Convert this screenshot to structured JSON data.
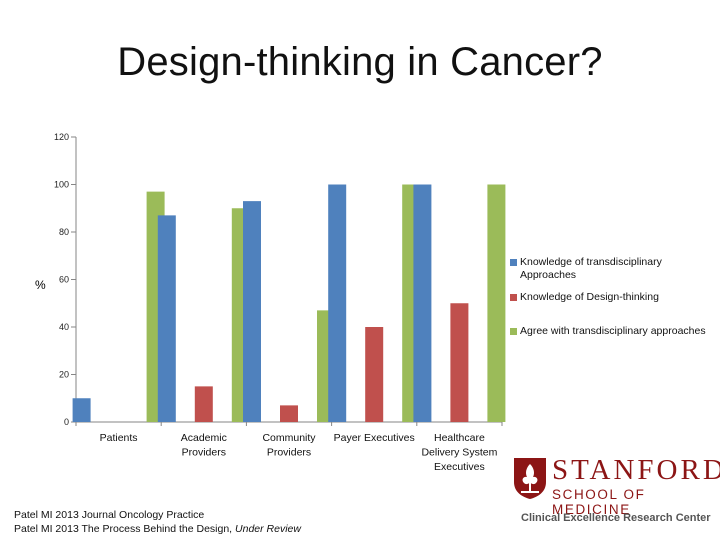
{
  "slide": {
    "title": "Design-thinking in Cancer?",
    "citations": [
      {
        "text": "Patel MI 2013 Journal Oncology Practice",
        "italic": ""
      },
      {
        "text": "Patel MI 2013 The Process Behind the Design, ",
        "italic": "Under Review"
      }
    ]
  },
  "logo": {
    "wordmark": "STANFORD",
    "school": "SCHOOL OF MEDICINE",
    "center": "Clinical Excellence Research Center",
    "color": "#8c1515"
  },
  "chart_data": {
    "type": "bar",
    "title": "",
    "xlabel": "",
    "ylabel": "%",
    "ylim": [
      0,
      120
    ],
    "yticks": [
      0,
      20,
      40,
      60,
      80,
      100,
      120
    ],
    "grid": false,
    "legend_position": "right",
    "categories": [
      [
        "Patients"
      ],
      [
        "Academic",
        "Providers"
      ],
      [
        "Community",
        "Providers"
      ],
      [
        "Payer Executives"
      ],
      [
        "Healthcare",
        "Delivery System",
        "Executives"
      ]
    ],
    "series": [
      {
        "name": "Knowledge of transdisciplinary Approaches",
        "legend_lines": [
          "Knowledge of transdisciplinary",
          "Approaches"
        ],
        "color": "#4f81bd",
        "values": [
          10,
          87,
          93,
          100,
          100
        ]
      },
      {
        "name": "Knowledge of Design-thinking",
        "legend_lines": [
          "Knowledge of Design-thinking"
        ],
        "color": "#c0504d",
        "values": [
          null,
          15,
          7,
          40,
          50
        ]
      },
      {
        "name": "Agree with transdisciplinary approaches",
        "legend_lines": [
          "Agree with transdisciplinary approaches"
        ],
        "color": "#9bbb59",
        "values": [
          97,
          90,
          47,
          100,
          100
        ]
      }
    ]
  }
}
